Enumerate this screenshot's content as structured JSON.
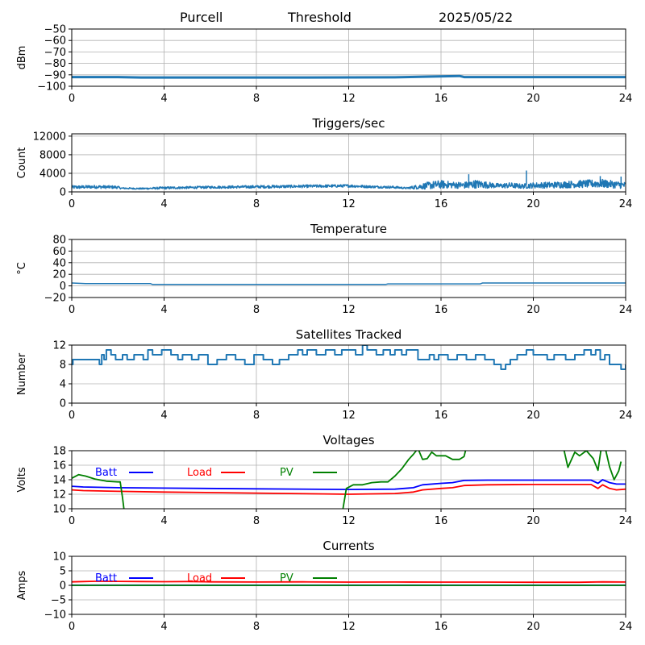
{
  "header": {
    "station": "Purcell",
    "mode": "Threshold",
    "date": "2025/05/22"
  },
  "colors": {
    "series": "#1f77b4",
    "grid": "#b0b0b0",
    "batt": "#0000ff",
    "load": "#ff0000",
    "pv": "#008000"
  },
  "chart_data": [
    {
      "id": "threshold",
      "type": "line",
      "title": "",
      "ylabel": "dBm",
      "xlim": [
        0,
        24
      ],
      "ylim": [
        -100,
        -50
      ],
      "xticks": [
        0,
        4,
        8,
        12,
        16,
        20,
        24
      ],
      "yticks": [
        -100,
        -90,
        -80,
        -70,
        -60,
        -50
      ],
      "yticklabels": [
        "−100",
        "−90",
        "−80",
        "−70",
        "−60",
        "−50"
      ],
      "grid": true,
      "series": [
        {
          "color": "#1f77b4",
          "width": 3,
          "x": [
            0,
            2,
            3,
            6,
            10,
            14,
            16.8,
            17,
            20,
            24
          ],
          "y": [
            -92,
            -92,
            -92.3,
            -92.3,
            -92.3,
            -92.2,
            -91,
            -92,
            -92,
            -92
          ]
        }
      ]
    },
    {
      "id": "triggers",
      "type": "line",
      "title": "Triggers/sec",
      "ylabel": "Count",
      "xlim": [
        0,
        24
      ],
      "ylim": [
        0,
        12500
      ],
      "xticks": [
        0,
        4,
        8,
        12,
        16,
        20,
        24
      ],
      "yticks": [
        0,
        4000,
        8000,
        12000
      ],
      "yticklabels": [
        "0",
        "4000",
        "8000",
        "12000"
      ],
      "grid": true,
      "series": [
        {
          "color": "#1f77b4",
          "width": 1.5,
          "noisy": true,
          "x": [
            0,
            1,
            2,
            2.1,
            3,
            4,
            6,
            8,
            10,
            12,
            13,
            14,
            14.5,
            15,
            15.5,
            16,
            16.5,
            17,
            17.5,
            18,
            18.5,
            19,
            19.5,
            20,
            21,
            22,
            23,
            24
          ],
          "y": [
            1000,
            1100,
            1000,
            800,
            700,
            850,
            1000,
            1100,
            1200,
            1300,
            1100,
            1000,
            800,
            1100,
            1400,
            1600,
            1500,
            1400,
            1700,
            1500,
            1300,
            1400,
            1200,
            1400,
            1500,
            1700,
            1800,
            1400
          ],
          "amp": [
            350,
            350,
            300,
            150,
            150,
            250,
            250,
            300,
            300,
            300,
            250,
            250,
            150,
            500,
            800,
            900,
            700,
            700,
            900,
            700,
            500,
            600,
            500,
            600,
            700,
            800,
            900,
            700
          ]
        },
        {
          "color": "#1f77b4",
          "width": 1.5,
          "x": [
            17.2,
            17.2
          ],
          "y": [
            800,
            3800
          ]
        },
        {
          "color": "#1f77b4",
          "width": 1.5,
          "x": [
            19.7,
            19.7
          ],
          "y": [
            1500,
            4600
          ]
        },
        {
          "color": "#1f77b4",
          "width": 1.5,
          "x": [
            22.9,
            22.9
          ],
          "y": [
            1200,
            3400
          ]
        },
        {
          "color": "#1f77b4",
          "width": 1.5,
          "x": [
            23.8,
            23.8
          ],
          "y": [
            1000,
            3300
          ]
        }
      ]
    },
    {
      "id": "temperature",
      "type": "line",
      "title": "Temperature",
      "ylabel": "°C",
      "xlim": [
        0,
        24
      ],
      "ylim": [
        -20,
        80
      ],
      "xticks": [
        0,
        4,
        8,
        12,
        16,
        20,
        24
      ],
      "yticks": [
        -20,
        0,
        20,
        40,
        60,
        80
      ],
      "yticklabels": [
        "−20",
        "0",
        "20",
        "40",
        "60",
        "80"
      ],
      "grid": true,
      "series": [
        {
          "color": "#1f77b4",
          "width": 1.5,
          "x": [
            0,
            0.3,
            0.6,
            3.4,
            3.5,
            13.6,
            13.7,
            17.7,
            17.8,
            24
          ],
          "y": [
            5,
            4.5,
            4,
            4,
            2.5,
            2.5,
            3.5,
            3.5,
            5,
            5
          ]
        }
      ]
    },
    {
      "id": "satellites",
      "type": "line",
      "title": "Satellites Tracked",
      "ylabel": "Number",
      "xlim": [
        0,
        24
      ],
      "ylim": [
        0,
        12
      ],
      "xticks": [
        0,
        4,
        8,
        12,
        16,
        20,
        24
      ],
      "yticks": [
        0,
        4,
        8,
        12
      ],
      "yticklabels": [
        "0",
        "4",
        "8",
        "12"
      ],
      "grid": true,
      "step": true,
      "series": [
        {
          "color": "#1f77b4",
          "width": 2,
          "x": [
            0,
            0.05,
            1.2,
            1.3,
            1.4,
            1.5,
            1.7,
            1.9,
            2.2,
            2.4,
            2.7,
            3.1,
            3.3,
            3.5,
            3.9,
            4.3,
            4.6,
            4.8,
            5.2,
            5.5,
            5.9,
            6.3,
            6.7,
            7.1,
            7.5,
            7.9,
            8.3,
            8.7,
            9.0,
            9.4,
            9.8,
            10.0,
            10.2,
            10.6,
            11.0,
            11.4,
            11.7,
            12.0,
            12.3,
            12.6,
            12.8,
            13.2,
            13.5,
            13.8,
            14.0,
            14.3,
            14.5,
            15.0,
            15.5,
            15.7,
            15.9,
            16.3,
            16.7,
            17.1,
            17.5,
            17.9,
            18.3,
            18.6,
            18.8,
            19.0,
            19.3,
            19.7,
            20.0,
            20.6,
            20.9,
            21.4,
            21.8,
            22.2,
            22.5,
            22.7,
            22.9,
            23.1,
            23.3,
            23.7,
            23.8,
            24
          ],
          "y": [
            8,
            9,
            8,
            10,
            9,
            11,
            10,
            9,
            10,
            9,
            10,
            9,
            11,
            10,
            11,
            10,
            9,
            10,
            9,
            10,
            8,
            9,
            10,
            9,
            8,
            10,
            9,
            8,
            9,
            10,
            11,
            10,
            11,
            10,
            11,
            10,
            11,
            11,
            10,
            12,
            11,
            10,
            11,
            10,
            11,
            10,
            11,
            9,
            10,
            9,
            10,
            9,
            10,
            9,
            10,
            9,
            8,
            7,
            8,
            9,
            10,
            11,
            10,
            9,
            10,
            9,
            10,
            11,
            10,
            11,
            9,
            10,
            8,
            8,
            7,
            8
          ]
        }
      ]
    },
    {
      "id": "voltages",
      "type": "line",
      "title": "Voltages",
      "ylabel": "Volts",
      "xlim": [
        0,
        24
      ],
      "ylim": [
        10,
        18
      ],
      "xticks": [
        0,
        4,
        8,
        12,
        16,
        20,
        24
      ],
      "yticks": [
        10,
        12,
        14,
        16,
        18
      ],
      "yticklabels": [
        "10",
        "12",
        "14",
        "16",
        "18"
      ],
      "grid": true,
      "legend": [
        {
          "label": "Batt",
          "color": "#0000ff"
        },
        {
          "label": "Load",
          "color": "#ff0000"
        },
        {
          "label": "PV",
          "color": "#008000"
        }
      ],
      "series": [
        {
          "name": "Batt",
          "color": "#0000ff",
          "width": 1.8,
          "x": [
            0,
            0.5,
            2,
            4,
            8,
            12,
            14,
            14.8,
            15.2,
            16,
            16.5,
            17,
            18,
            20,
            22.5,
            22.8,
            23,
            23.3,
            23.6,
            24
          ],
          "y": [
            13.1,
            13.0,
            12.9,
            12.85,
            12.75,
            12.65,
            12.7,
            12.9,
            13.3,
            13.5,
            13.6,
            13.9,
            13.95,
            13.95,
            13.95,
            13.5,
            14.0,
            13.6,
            13.4,
            13.4
          ]
        },
        {
          "name": "Load",
          "color": "#ff0000",
          "width": 1.8,
          "x": [
            0,
            0.5,
            2,
            4,
            8,
            12,
            14,
            14.8,
            15.2,
            16,
            16.5,
            17,
            18,
            20,
            22.5,
            22.8,
            23,
            23.3,
            23.6,
            24
          ],
          "y": [
            12.6,
            12.5,
            12.4,
            12.3,
            12.15,
            12.0,
            12.1,
            12.3,
            12.6,
            12.8,
            12.9,
            13.2,
            13.3,
            13.35,
            13.35,
            12.8,
            13.3,
            12.8,
            12.6,
            12.7
          ]
        },
        {
          "name": "PV",
          "color": "#008000",
          "width": 1.8,
          "x": [
            0,
            0.3,
            0.6,
            1.0,
            1.5,
            2.0,
            2.1,
            2.2,
            2.3
          ],
          "y": [
            14.2,
            14.7,
            14.5,
            14.1,
            13.8,
            13.7,
            13.7,
            11.5,
            9
          ]
        },
        {
          "name": "PV",
          "color": "#008000",
          "width": 1.8,
          "x": [
            11.7,
            11.9,
            12.2,
            12.6,
            13.0,
            13.4,
            13.7,
            14.0,
            14.3,
            14.6,
            14.8,
            15.0,
            15.2,
            15.4,
            15.6,
            15.8,
            16.2,
            16.5,
            16.8,
            17.0,
            17.1
          ],
          "y": [
            9,
            12.8,
            13.3,
            13.3,
            13.6,
            13.7,
            13.7,
            14.5,
            15.5,
            16.8,
            17.5,
            18.3,
            16.8,
            16.9,
            17.8,
            17.3,
            17.3,
            16.8,
            16.8,
            17.2,
            18.5
          ]
        },
        {
          "name": "PV",
          "color": "#008000",
          "width": 1.8,
          "x": [
            21.3,
            21.5,
            21.8,
            22.0,
            22.3,
            22.6,
            22.8,
            22.95,
            23.1,
            23.3,
            23.5,
            23.7,
            23.8
          ],
          "y": [
            18.5,
            15.7,
            17.8,
            17.3,
            18.0,
            16.9,
            15.3,
            18.5,
            18.6,
            15.8,
            14.0,
            15.2,
            16.5
          ]
        }
      ]
    },
    {
      "id": "currents",
      "type": "line",
      "title": "Currents",
      "ylabel": "Amps",
      "xlim": [
        0,
        24
      ],
      "ylim": [
        -10,
        10
      ],
      "xticks": [
        0,
        4,
        8,
        12,
        16,
        20,
        24
      ],
      "yticks": [
        -10,
        -5,
        0,
        5,
        10
      ],
      "yticklabels": [
        "−10",
        "−5",
        "0",
        "5",
        "10"
      ],
      "grid": true,
      "legend": [
        {
          "label": "Batt",
          "color": "#0000ff"
        },
        {
          "label": "Load",
          "color": "#ff0000"
        },
        {
          "label": "PV",
          "color": "#008000"
        }
      ],
      "series": [
        {
          "name": "Batt",
          "color": "#0000ff",
          "width": 1.8,
          "x": [
            0,
            24
          ],
          "y": [
            0.05,
            0.05
          ]
        },
        {
          "name": "Load",
          "color": "#ff0000",
          "width": 1.8,
          "x": [
            0,
            0.5,
            1,
            2,
            3,
            4,
            5,
            6,
            8,
            10,
            12,
            14,
            16,
            18,
            20,
            22,
            23,
            24
          ],
          "y": [
            1.2,
            1.3,
            1.4,
            1.35,
            1.3,
            1.25,
            1.3,
            1.2,
            1.15,
            1.2,
            1.1,
            1.15,
            1.1,
            1.1,
            1.05,
            1.05,
            1.2,
            1.15
          ]
        },
        {
          "name": "PV",
          "color": "#008000",
          "width": 1.8,
          "x": [
            0,
            24
          ],
          "y": [
            0.0,
            0.0
          ]
        }
      ]
    }
  ]
}
